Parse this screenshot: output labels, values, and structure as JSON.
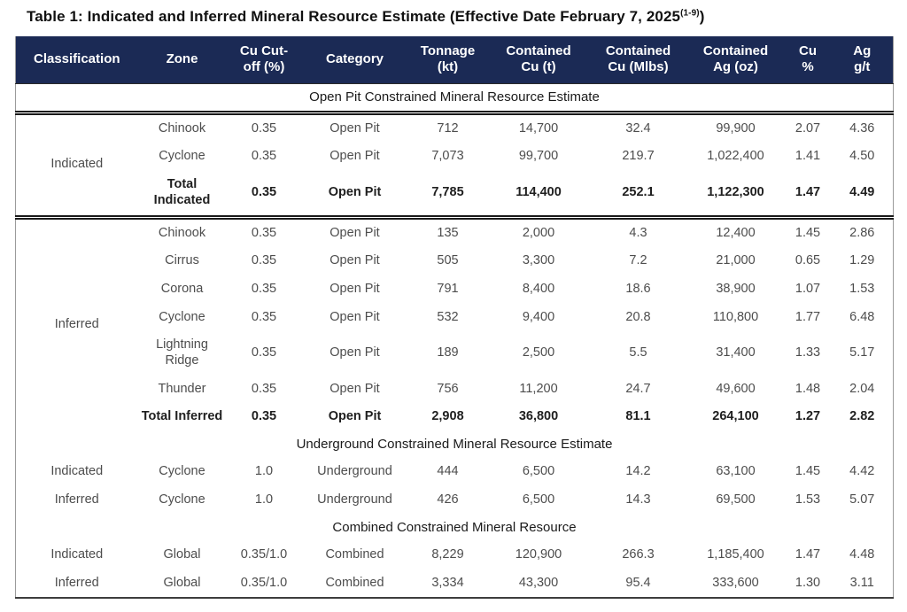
{
  "page": {
    "title_main": "Table 1: Indicated and Inferred Mineral Resource Estimate (Effective Date February 7, 2025",
    "title_superscript": "(1-9)",
    "title_close": ")"
  },
  "colors": {
    "header_background": "#1b2a55",
    "header_text": "#ffffff",
    "body_text": "#4d4d4d",
    "rule_dark": "#1a1a1a"
  },
  "table": {
    "columns": [
      "Classification",
      "Zone",
      "Cu Cut-\noff (%)",
      "Category",
      "Tonnage\n(kt)",
      "Contained\nCu (t)",
      "Contained\nCu (Mlbs)",
      "Contained\nAg (oz)",
      "Cu\n%",
      "Ag\ng/t"
    ],
    "column_keys": [
      "zone",
      "cu-cutoff",
      "category",
      "tonnage-kt",
      "contained-cu-t",
      "contained-cu-mlbs",
      "contained-ag-oz",
      "cu-pct",
      "ag-gpt"
    ],
    "rows": [
      {
        "type": "section",
        "label": "Open Pit Constrained Mineral Resource Estimate",
        "thick_bottom": true
      },
      {
        "type": "data",
        "classification": {
          "label": "Indicated",
          "rowspan": 3,
          "thick_bottom": true
        },
        "cells": [
          "Chinook",
          "0.35",
          "Open Pit",
          "712",
          "14,700",
          "32.4",
          "99,900",
          "2.07",
          "4.36"
        ]
      },
      {
        "type": "data",
        "cells": [
          "Cyclone",
          "0.35",
          "Open Pit",
          "7,073",
          "99,700",
          "219.7",
          "1,022,400",
          "1.41",
          "4.50"
        ]
      },
      {
        "type": "data",
        "bold": true,
        "thick_bottom": true,
        "cells": [
          "Total Indicated",
          "0.35",
          "Open Pit",
          "7,785",
          "114,400",
          "252.1",
          "1,122,300",
          "1.47",
          "4.49"
        ]
      },
      {
        "type": "data",
        "classification": {
          "label": "Inferred",
          "rowspan": 7
        },
        "cells": [
          "Chinook",
          "0.35",
          "Open Pit",
          "135",
          "2,000",
          "4.3",
          "12,400",
          "1.45",
          "2.86"
        ]
      },
      {
        "type": "data",
        "cells": [
          "Cirrus",
          "0.35",
          "Open Pit",
          "505",
          "3,300",
          "7.2",
          "21,000",
          "0.65",
          "1.29"
        ]
      },
      {
        "type": "data",
        "cells": [
          "Corona",
          "0.35",
          "Open Pit",
          "791",
          "8,400",
          "18.6",
          "38,900",
          "1.07",
          "1.53"
        ]
      },
      {
        "type": "data",
        "cells": [
          "Cyclone",
          "0.35",
          "Open Pit",
          "532",
          "9,400",
          "20.8",
          "110,800",
          "1.77",
          "6.48"
        ]
      },
      {
        "type": "data",
        "cells": [
          "Lightning Ridge",
          "0.35",
          "Open Pit",
          "189",
          "2,500",
          "5.5",
          "31,400",
          "1.33",
          "5.17"
        ]
      },
      {
        "type": "data",
        "cells": [
          "Thunder",
          "0.35",
          "Open Pit",
          "756",
          "11,200",
          "24.7",
          "49,600",
          "1.48",
          "2.04"
        ]
      },
      {
        "type": "data",
        "bold": true,
        "cells": [
          "Total Inferred",
          "0.35",
          "Open Pit",
          "2,908",
          "36,800",
          "81.1",
          "264,100",
          "1.27",
          "2.82"
        ]
      },
      {
        "type": "section",
        "label": "Underground Constrained Mineral Resource Estimate"
      },
      {
        "type": "data",
        "classification": {
          "label": "Indicated",
          "rowspan": 1
        },
        "cells": [
          "Cyclone",
          "1.0",
          "Underground",
          "444",
          "6,500",
          "14.2",
          "63,100",
          "1.45",
          "4.42"
        ]
      },
      {
        "type": "data",
        "classification": {
          "label": "Inferred",
          "rowspan": 1
        },
        "cells": [
          "Cyclone",
          "1.0",
          "Underground",
          "426",
          "6,500",
          "14.3",
          "69,500",
          "1.53",
          "5.07"
        ]
      },
      {
        "type": "section",
        "label": "Combined Constrained Mineral Resource"
      },
      {
        "type": "data",
        "classification": {
          "label": "Indicated",
          "rowspan": 1
        },
        "cells": [
          "Global",
          "0.35/1.0",
          "Combined",
          "8,229",
          "120,900",
          "266.3",
          "1,185,400",
          "1.47",
          "4.48"
        ]
      },
      {
        "type": "data",
        "classification": {
          "label": "Inferred",
          "rowspan": 1
        },
        "cells": [
          "Global",
          "0.35/1.0",
          "Combined",
          "3,334",
          "43,300",
          "95.4",
          "333,600",
          "1.30",
          "3.11"
        ]
      }
    ]
  }
}
